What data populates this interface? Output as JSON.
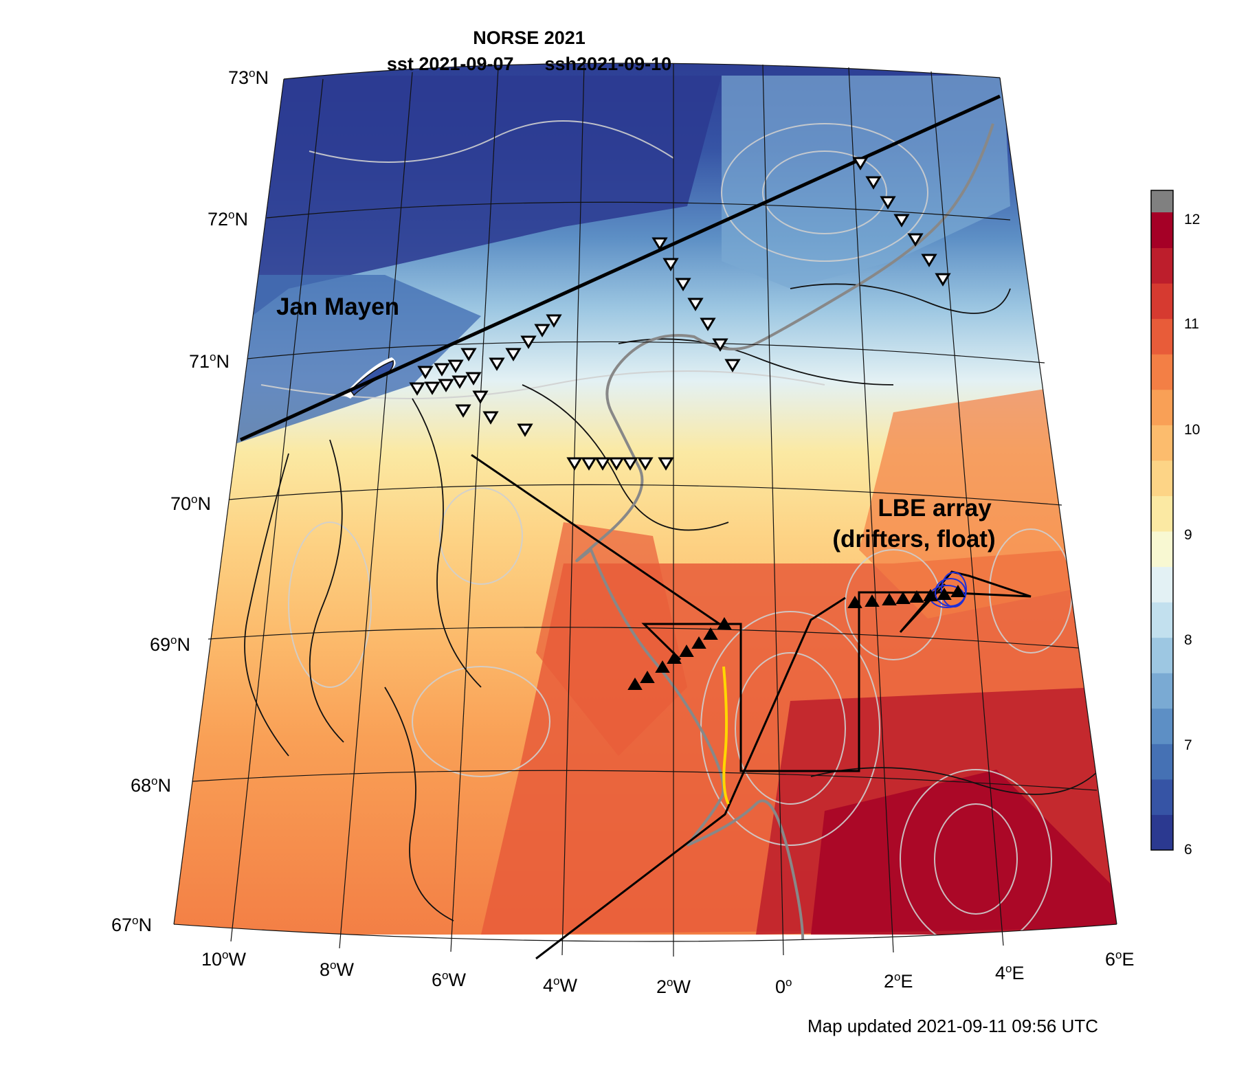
{
  "title": "NORSE 2021",
  "subtitle_sst": "sst 2021-09-07",
  "subtitle_ssh": "ssh2021-09-10",
  "lat_labels": [
    "73",
    "72",
    "71",
    "70",
    "69",
    "68",
    "67"
  ],
  "lat_suffix": "N",
  "lon_labels": [
    {
      "num": "10",
      "dir": "W"
    },
    {
      "num": "8",
      "dir": "W"
    },
    {
      "num": "6",
      "dir": "W"
    },
    {
      "num": "4",
      "dir": "W"
    },
    {
      "num": "2",
      "dir": "W"
    },
    {
      "num": "0",
      "dir": ""
    },
    {
      "num": "2",
      "dir": "E"
    },
    {
      "num": "4",
      "dir": "E"
    },
    {
      "num": "6",
      "dir": "E"
    }
  ],
  "colorbar": {
    "ticks": [
      "12",
      "11",
      "10",
      "9",
      "8",
      "7",
      "6"
    ],
    "over_color": "#808080",
    "colors": [
      "#2b3990",
      "#3654a5",
      "#4571b4",
      "#5d8fc5",
      "#7aaad3",
      "#9dc7e2",
      "#c2e0ee",
      "#e3f1f4",
      "#f8f8d2",
      "#fbe9a3",
      "#fdd486",
      "#fcbc6d",
      "#f9a056",
      "#f37f45",
      "#e85c39",
      "#d63a30",
      "#bd1e2c",
      "#a50026"
    ]
  },
  "annotations": {
    "jan_mayen": "Jan Mayen",
    "lbe_line1": "LBE array",
    "lbe_line2": "(drifters, float)"
  },
  "footer": "Map updated 2021-09-11 09:56 UTC"
}
